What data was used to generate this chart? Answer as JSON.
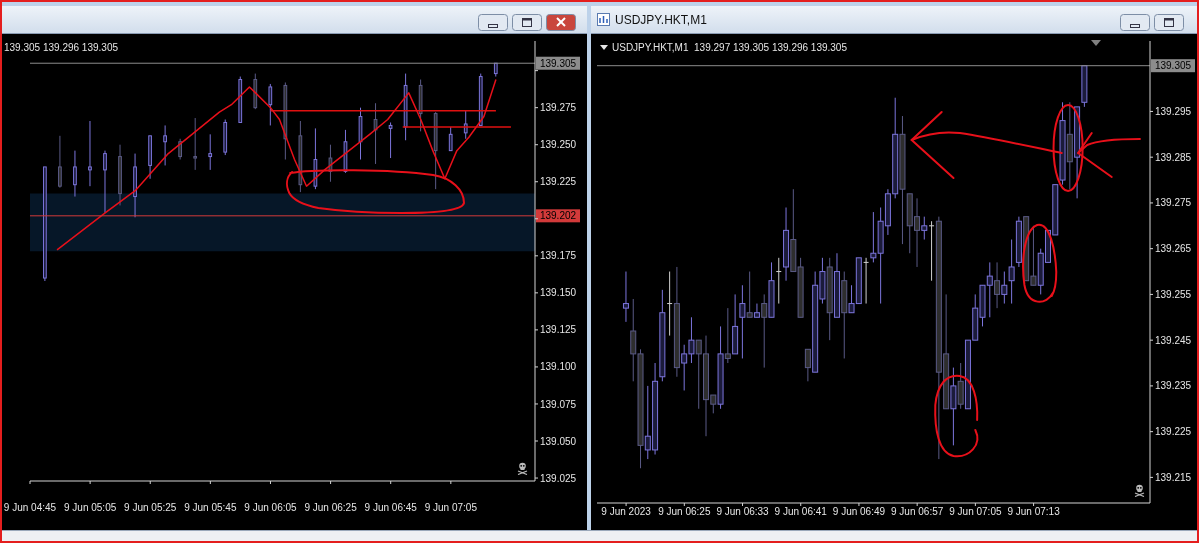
{
  "chart_data": [
    {
      "type": "candlestick",
      "title": "139.305 139.296 139.305",
      "x": [
        "2023-06-09T04:50",
        "2023-06-09T04:55",
        "2023-06-09T05:00",
        "2023-06-09T05:05",
        "2023-06-09T05:10",
        "2023-06-09T05:15",
        "2023-06-09T05:20",
        "2023-06-09T05:25",
        "2023-06-09T05:30",
        "2023-06-09T05:35",
        "2023-06-09T05:40",
        "2023-06-09T05:45",
        "2023-06-09T05:50",
        "2023-06-09T05:55",
        "2023-06-09T06:00",
        "2023-06-09T06:05",
        "2023-06-09T06:10",
        "2023-06-09T06:15",
        "2023-06-09T06:20",
        "2023-06-09T06:25",
        "2023-06-09T06:30",
        "2023-06-09T06:35",
        "2023-06-09T06:40",
        "2023-06-09T06:45",
        "2023-06-09T06:50",
        "2023-06-09T06:55",
        "2023-06-09T07:00",
        "2023-06-09T07:05",
        "2023-06-09T07:10",
        "2023-06-09T07:15",
        "2023-06-09T07:20"
      ],
      "ohlc": [
        [
          139.16,
          139.235,
          139.158,
          139.235
        ],
        [
          139.235,
          139.256,
          139.221,
          139.222
        ],
        [
          139.223,
          139.246,
          139.215,
          139.235
        ],
        [
          139.233,
          139.266,
          139.222,
          139.235
        ],
        [
          139.233,
          139.246,
          139.204,
          139.244
        ],
        [
          139.242,
          139.25,
          139.209,
          139.217
        ],
        [
          139.215,
          139.244,
          139.201,
          139.235
        ],
        [
          139.236,
          139.256,
          139.227,
          139.256
        ],
        [
          139.252,
          139.263,
          139.236,
          139.256
        ],
        [
          139.252,
          139.254,
          139.24,
          139.242
        ],
        [
          139.242,
          139.268,
          139.233,
          139.241
        ],
        [
          139.242,
          139.257,
          139.233,
          139.244
        ],
        [
          139.245,
          139.267,
          139.243,
          139.265
        ],
        [
          139.265,
          139.296,
          139.265,
          139.294
        ],
        [
          139.294,
          139.298,
          139.274,
          139.275
        ],
        [
          139.277,
          139.291,
          139.263,
          139.289
        ],
        [
          139.29,
          139.292,
          139.24,
          139.254
        ],
        [
          139.256,
          139.266,
          139.218,
          139.223
        ],
        [
          139.222,
          139.261,
          139.22,
          139.24
        ],
        [
          139.241,
          139.25,
          139.225,
          139.232
        ],
        [
          139.232,
          139.26,
          139.231,
          139.252
        ],
        [
          139.252,
          139.275,
          139.24,
          139.269
        ],
        [
          139.267,
          139.278,
          139.237,
          139.26
        ],
        [
          139.261,
          139.265,
          139.241,
          139.263
        ],
        [
          139.262,
          139.298,
          139.253,
          139.29
        ],
        [
          139.29,
          139.294,
          139.259,
          139.271
        ],
        [
          139.271,
          139.272,
          139.22,
          139.246
        ],
        [
          139.246,
          139.262,
          139.246,
          139.257
        ],
        [
          139.258,
          139.273,
          139.254,
          139.264
        ],
        [
          139.263,
          139.298,
          139.263,
          139.296
        ],
        [
          139.298,
          139.305,
          139.296,
          139.305
        ]
      ],
      "colors": [
        "#7c75dc",
        "#5a5a86",
        "#7c75dc",
        "#7c75dc",
        "#7c75dc",
        "#5a5a86",
        "#7c75dc",
        "#7c75dc",
        "#7c75dc",
        "#5a5a86",
        "#5a5a86",
        "#7c75dc",
        "#7c75dc",
        "#7c75dc",
        "#5a5a86",
        "#7c75dc",
        "#5a5a86",
        "#5a5a86",
        "#7c75dc",
        "#5a5a86",
        "#7c75dc",
        "#7c75dc",
        "#5a5a86",
        "#7c75dc",
        "#7c75dc",
        "#5a5a86",
        "#5a5a86",
        "#7c75dc",
        "#7c75dc",
        "#7c75dc",
        "#7c75dc"
      ],
      "series": [
        {
          "type": "line",
          "x": [
            "2023-06-09T06:05",
            "2023-06-09T07:20"
          ],
          "values": [
            139.273,
            139.273
          ],
          "color": "#e01010"
        },
        {
          "type": "line",
          "x": [
            "2023-06-09T06:49",
            "2023-06-09T07:25"
          ],
          "values": [
            139.262,
            139.262
          ],
          "color": "#e01010"
        },
        {
          "type": "line",
          "x": [
            "2023-06-09T04:54",
            "2023-06-09T05:10",
            "2023-06-09T05:20",
            "2023-06-09T05:31",
            "2023-06-09T05:48",
            "2023-06-09T05:52",
            "2023-06-09T05:58",
            "2023-06-09T06:05",
            "2023-06-09T06:08",
            "2023-06-09T06:13",
            "2023-06-09T06:17",
            "2023-06-09T06:23",
            "2023-06-09T06:38",
            "2023-06-09T06:44",
            "2023-06-09T06:51",
            "2023-06-09T06:55",
            "2023-06-09T06:59",
            "2023-06-09T07:03",
            "2023-06-09T07:07",
            "2023-06-09T07:11",
            "2023-06-09T07:16",
            "2023-06-09T07:20"
          ],
          "values": [
            139.179,
            139.204,
            139.219,
            139.244,
            139.272,
            139.277,
            139.289,
            139.275,
            139.267,
            139.24,
            139.222,
            139.233,
            139.257,
            139.267,
            139.285,
            139.267,
            139.246,
            139.227,
            139.246,
            139.255,
            139.269,
            139.294
          ],
          "color": "#e8101a"
        }
      ],
      "ref_lines": [
        {
          "axis": "y",
          "value": 139.305,
          "label": "139.305",
          "color": "#8c8c8c"
        },
        {
          "axis": "y",
          "value": 139.202,
          "label": "139.202",
          "color": "#d23a3a"
        }
      ],
      "bands": [
        {
          "axis": "y",
          "from": 139.178,
          "to": 139.217,
          "color": "#061728"
        }
      ],
      "xlim": [
        "2023-06-09T04:45",
        "2023-06-09T07:33"
      ],
      "xticks": [
        {
          "value": "2023-06-09T04:45",
          "label": "9 Jun 04:45"
        },
        {
          "value": "2023-06-09T05:05",
          "label": "9 Jun 05:05"
        },
        {
          "value": "2023-06-09T05:25",
          "label": "9 Jun 05:25"
        },
        {
          "value": "2023-06-09T05:45",
          "label": "9 Jun 05:45"
        },
        {
          "value": "2023-06-09T06:05",
          "label": "9 Jun 06:05"
        },
        {
          "value": "2023-06-09T06:25",
          "label": "9 Jun 06:25"
        },
        {
          "value": "2023-06-09T06:45",
          "label": "9 Jun 06:45"
        },
        {
          "value": "2023-06-09T07:05",
          "label": "9 Jun 07:05"
        }
      ],
      "ylim": [
        139.023,
        139.32
      ],
      "yticks": [
        139.025,
        {
          "value": 139.05,
          "label": "139.050"
        },
        139.075,
        {
          "value": 139.1,
          "label": "139.100"
        },
        139.125,
        {
          "value": 139.15,
          "label": "139.150"
        },
        139.175,
        {
          "value": 139.2,
          "label": null
        },
        139.225,
        {
          "value": 139.25,
          "label": "139.250"
        },
        139.275,
        {
          "value": 139.3,
          "label": null
        }
      ]
    },
    {
      "type": "candlestick",
      "title": "USDJPY.HKT,M1  139.297 139.305 139.296 139.305",
      "annotations": [
        "USDJPY.HKT,M1"
      ],
      "x": [
        "2023-06-09T06:17",
        "2023-06-09T06:18",
        "2023-06-09T06:19",
        "2023-06-09T06:20",
        "2023-06-09T06:21",
        "2023-06-09T06:22",
        "2023-06-09T06:23",
        "2023-06-09T06:24",
        "2023-06-09T06:25",
        "2023-06-09T06:26",
        "2023-06-09T06:27",
        "2023-06-09T06:28",
        "2023-06-09T06:29",
        "2023-06-09T06:30",
        "2023-06-09T06:31",
        "2023-06-09T06:32",
        "2023-06-09T06:33",
        "2023-06-09T06:34",
        "2023-06-09T06:35",
        "2023-06-09T06:36",
        "2023-06-09T06:37",
        "2023-06-09T06:38",
        "2023-06-09T06:39",
        "2023-06-09T06:40",
        "2023-06-09T06:41",
        "2023-06-09T06:42",
        "2023-06-09T06:43",
        "2023-06-09T06:44",
        "2023-06-09T06:45",
        "2023-06-09T06:46",
        "2023-06-09T06:47",
        "2023-06-09T06:48",
        "2023-06-09T06:49",
        "2023-06-09T06:50",
        "2023-06-09T06:51",
        "2023-06-09T06:52",
        "2023-06-09T06:53",
        "2023-06-09T06:54",
        "2023-06-09T06:55",
        "2023-06-09T06:56",
        "2023-06-09T06:57",
        "2023-06-09T06:58",
        "2023-06-09T06:59",
        "2023-06-09T07:00",
        "2023-06-09T07:01",
        "2023-06-09T07:02",
        "2023-06-09T07:03",
        "2023-06-09T07:04",
        "2023-06-09T07:05",
        "2023-06-09T07:06",
        "2023-06-09T07:07",
        "2023-06-09T07:08",
        "2023-06-09T07:09",
        "2023-06-09T07:10",
        "2023-06-09T07:11",
        "2023-06-09T07:12",
        "2023-06-09T07:13",
        "2023-06-09T07:14",
        "2023-06-09T07:15",
        "2023-06-09T07:16",
        "2023-06-09T07:17",
        "2023-06-09T07:18",
        "2023-06-09T07:19",
        "2023-06-09T07:20"
      ],
      "ohlc": [
        [
          139.252,
          139.26,
          139.249,
          139.253
        ],
        [
          139.247,
          139.254,
          139.236,
          139.242
        ],
        [
          139.242,
          139.243,
          139.217,
          139.222
        ],
        [
          139.221,
          139.235,
          139.219,
          139.224
        ],
        [
          139.221,
          139.24,
          139.22,
          139.236
        ],
        [
          139.237,
          139.256,
          139.236,
          139.251
        ],
        [
          139.253,
          139.26,
          139.246,
          139.253
        ],
        [
          139.253,
          139.261,
          139.237,
          139.239
        ],
        [
          139.24,
          139.244,
          139.234,
          139.242
        ],
        [
          139.242,
          139.25,
          139.24,
          139.245
        ],
        [
          139.245,
          139.245,
          139.23,
          139.242
        ],
        [
          139.242,
          139.246,
          139.224,
          139.232
        ],
        [
          139.233,
          139.233,
          139.229,
          139.231
        ],
        [
          139.231,
          139.248,
          139.23,
          139.242
        ],
        [
          139.242,
          139.252,
          139.24,
          139.241
        ],
        [
          139.242,
          139.255,
          139.242,
          139.248
        ],
        [
          139.25,
          139.257,
          139.241,
          139.253
        ],
        [
          139.251,
          139.26,
          139.25,
          139.25
        ],
        [
          139.25,
          139.253,
          139.25,
          139.251
        ],
        [
          139.253,
          139.255,
          139.239,
          139.25
        ],
        [
          139.25,
          139.262,
          139.25,
          139.258
        ],
        [
          139.26,
          139.263,
          139.253,
          139.26
        ],
        [
          139.261,
          139.274,
          139.258,
          139.269
        ],
        [
          139.267,
          139.278,
          139.26,
          139.26
        ],
        [
          139.261,
          139.263,
          139.25,
          139.25
        ],
        [
          139.243,
          139.243,
          139.236,
          139.239
        ],
        [
          139.238,
          139.26,
          139.238,
          139.257
        ],
        [
          139.254,
          139.263,
          139.253,
          139.26
        ],
        [
          139.261,
          139.263,
          139.245,
          139.251
        ],
        [
          139.25,
          139.264,
          139.25,
          139.26
        ],
        [
          139.258,
          139.26,
          139.241,
          139.251
        ],
        [
          139.251,
          139.257,
          139.251,
          139.253
        ],
        [
          139.253,
          139.263,
          139.253,
          139.263
        ],
        [
          139.262,
          139.263,
          139.253,
          139.262
        ],
        [
          139.263,
          139.273,
          139.262,
          139.264
        ],
        [
          139.264,
          139.274,
          139.253,
          139.271
        ],
        [
          139.27,
          139.278,
          139.268,
          139.277
        ],
        [
          139.277,
          139.298,
          139.276,
          139.29
        ],
        [
          139.29,
          139.294,
          139.266,
          139.278
        ],
        [
          139.277,
          139.277,
          139.264,
          139.27
        ],
        [
          139.272,
          139.276,
          139.261,
          139.269
        ],
        [
          139.269,
          139.272,
          139.267,
          139.27
        ],
        [
          139.27,
          139.271,
          139.258,
          139.27
        ],
        [
          139.271,
          139.272,
          139.219,
          139.238
        ],
        [
          139.242,
          139.255,
          139.23,
          139.23
        ],
        [
          139.23,
          139.239,
          139.222,
          139.235
        ],
        [
          139.236,
          139.24,
          139.23,
          139.231
        ],
        [
          139.23,
          139.245,
          139.23,
          139.245
        ],
        [
          139.245,
          139.255,
          139.245,
          139.252
        ],
        [
          139.25,
          139.257,
          139.248,
          139.257
        ],
        [
          139.257,
          139.262,
          139.25,
          139.259
        ],
        [
          139.258,
          139.262,
          139.252,
          139.255
        ],
        [
          139.255,
          139.26,
          139.253,
          139.257
        ],
        [
          139.258,
          139.267,
          139.253,
          139.261
        ],
        [
          139.262,
          139.272,
          139.261,
          139.271
        ],
        [
          139.272,
          139.272,
          139.258,
          139.258
        ],
        [
          139.259,
          139.27,
          139.257,
          139.257
        ],
        [
          139.257,
          139.265,
          139.255,
          139.264
        ],
        [
          139.262,
          139.269,
          139.262,
          139.269
        ],
        [
          139.268,
          139.279,
          139.268,
          139.279
        ],
        [
          139.28,
          139.297,
          139.279,
          139.293
        ],
        [
          139.29,
          139.297,
          139.278,
          139.284
        ],
        [
          139.285,
          139.296,
          139.276,
          139.296
        ],
        [
          139.297,
          139.305,
          139.296,
          139.305
        ]
      ],
      "colors": [
        "#7c75dc",
        "#5a5a86",
        "#5a5a86",
        "#7c75dc",
        "#7c75dc",
        "#7c75dc",
        "#d0d0d0",
        "#5a5a86",
        "#7c75dc",
        "#7c75dc",
        "#5a5a86",
        "#5a5a86",
        "#5a5a86",
        "#7c75dc",
        "#5a5a86",
        "#7c75dc",
        "#7c75dc",
        "#5a5a86",
        "#7c75dc",
        "#5a5a86",
        "#7c75dc",
        "#d0d0d0",
        "#7c75dc",
        "#5a5a86",
        "#5a5a86",
        "#5a5a86",
        "#7c75dc",
        "#7c75dc",
        "#5a5a86",
        "#7c75dc",
        "#5a5a86",
        "#7c75dc",
        "#7c75dc",
        "#d0d0d0",
        "#7c75dc",
        "#7c75dc",
        "#7c75dc",
        "#7c75dc",
        "#5a5a86",
        "#5a5a86",
        "#5a5a86",
        "#7c75dc",
        "#d0d0d0",
        "#5a5a86",
        "#5a5a86",
        "#7c75dc",
        "#5a5a86",
        "#7c75dc",
        "#7c75dc",
        "#7c75dc",
        "#7c75dc",
        "#5a5a86",
        "#7c75dc",
        "#7c75dc",
        "#7c75dc",
        "#5a5a86",
        "#5a5a86",
        "#7c75dc",
        "#7c75dc",
        "#7c75dc",
        "#7c75dc",
        "#5a5a86",
        "#7c75dc",
        "#7c75dc"
      ],
      "ref_lines": [
        {
          "axis": "y",
          "value": 139.305,
          "label": "139.305",
          "color": "#8c8c8c"
        }
      ],
      "xlim": [
        "2023-06-09T06:13",
        "2023-06-09T07:29"
      ],
      "xticks": [
        {
          "value": "2023-06-09T06:17",
          "label": "9 Jun 2023"
        },
        {
          "value": "2023-06-09T06:25",
          "label": "9 Jun 06:25"
        },
        {
          "value": "2023-06-09T06:33",
          "label": "9 Jun 06:33"
        },
        {
          "value": "2023-06-09T06:41",
          "label": "9 Jun 06:41"
        },
        {
          "value": "2023-06-09T06:49",
          "label": "9 Jun 06:49"
        },
        {
          "value": "2023-06-09T06:57",
          "label": "9 Jun 06:57"
        },
        {
          "value": "2023-06-09T07:05",
          "label": "9 Jun 07:05"
        },
        {
          "value": "2023-06-09T07:13",
          "label": "9 Jun 07:13"
        }
      ],
      "ylim": [
        139.2094,
        139.3104
      ],
      "yticks": [
        139.295,
        139.285,
        139.275,
        139.265,
        139.255,
        139.245,
        139.235,
        139.225,
        139.215
      ]
    }
  ]
}
